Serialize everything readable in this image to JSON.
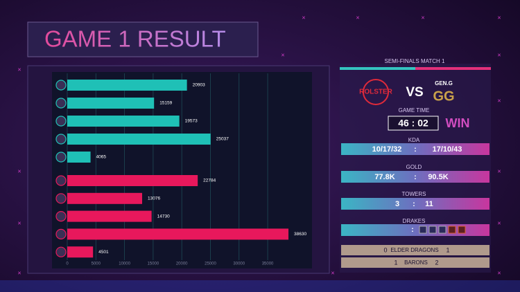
{
  "chart_data": {
    "type": "bar",
    "orientation": "horizontal",
    "title": "GAME 1 RESULT",
    "categories": [
      null,
      null,
      null,
      null,
      null,
      null,
      null,
      null,
      null,
      null
    ],
    "values": [
      20903,
      15159,
      19573,
      25037,
      4065,
      22784,
      13076,
      14730,
      38630,
      4501
    ],
    "colors": [
      "#1fc0b6",
      "#1fc0b6",
      "#1fc0b6",
      "#1fc0b6",
      "#1fc0b6",
      "#e8185c",
      "#e8185c",
      "#e8185c",
      "#e8185c",
      "#e8185c"
    ],
    "xlim": [
      0,
      42500
    ],
    "xticks": [
      0,
      5000,
      10000,
      15000,
      20000,
      25000,
      30000,
      35000
    ],
    "grid": true
  },
  "panel": {
    "header": "SEMI-FINALS MATCH 1",
    "team_left": "ROLSTER",
    "vs": "VS",
    "team_right": "GEN.G",
    "game_time_label": "GAME TIME",
    "game_time": "46 : 02",
    "result": "WIN",
    "kda": {
      "label": "KDA",
      "left": "10/17/32",
      "sep": ":",
      "right": "17/10/43"
    },
    "gold": {
      "label": "GOLD",
      "left": "77.8K",
      "sep": ":",
      "right": "90.5K"
    },
    "towers": {
      "label": "TOWERS",
      "left": "3",
      "sep": ":",
      "right": "11"
    },
    "drakes": {
      "label": "DRAKES",
      "sep": ":"
    },
    "elder": {
      "left": "0",
      "label": "ELDER DRAGONS",
      "right": "1"
    },
    "barons": {
      "left": "1",
      "label": "BARONS",
      "right": "2"
    }
  }
}
